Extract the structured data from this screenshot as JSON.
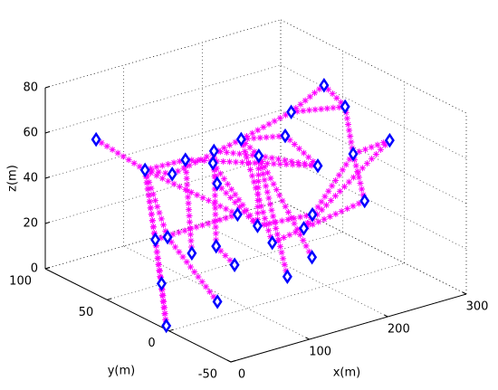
{
  "chart_data": {
    "type": "network3d",
    "x": [
      49,
      94,
      146,
      125,
      144,
      160,
      185,
      209,
      233,
      248,
      267,
      259,
      267,
      252,
      295,
      249,
      238,
      171,
      198,
      165,
      168,
      152,
      120,
      89,
      77,
      63,
      123,
      52,
      79,
      6,
      167,
      208
    ],
    "y": [
      90,
      79,
      90,
      66,
      55,
      66,
      59,
      60,
      49,
      32,
      27,
      44,
      -9,
      11,
      29,
      42,
      42,
      25,
      10,
      9,
      35,
      41,
      38,
      38,
      50,
      51,
      25,
      39,
      11,
      6,
      67,
      38
    ],
    "z": [
      55,
      40,
      30,
      45,
      50,
      40,
      50,
      40,
      60,
      75,
      65,
      35,
      60,
      50,
      20,
      15,
      10,
      15,
      10,
      5,
      20,
      25,
      15,
      15,
      20,
      20,
      10,
      5,
      2,
      0,
      30,
      55
    ],
    "edges": [
      [
        0,
        1
      ],
      [
        1,
        2
      ],
      [
        1,
        3
      ],
      [
        1,
        25
      ],
      [
        1,
        24
      ],
      [
        1,
        27
      ],
      [
        25,
        29
      ],
      [
        27,
        29
      ],
      [
        24,
        28
      ],
      [
        1,
        21
      ],
      [
        2,
        6
      ],
      [
        3,
        11
      ],
      [
        4,
        7
      ],
      [
        5,
        20
      ],
      [
        6,
        7
      ],
      [
        6,
        8
      ],
      [
        6,
        17
      ],
      [
        8,
        9
      ],
      [
        8,
        10
      ],
      [
        9,
        10
      ],
      [
        10,
        13
      ],
      [
        12,
        13
      ],
      [
        12,
        16
      ],
      [
        13,
        16
      ],
      [
        13,
        14
      ],
      [
        31,
        11
      ],
      [
        7,
        11
      ],
      [
        6,
        31
      ],
      [
        7,
        18
      ],
      [
        7,
        19
      ],
      [
        7,
        20
      ],
      [
        30,
        20
      ],
      [
        5,
        30
      ],
      [
        21,
        25
      ],
      [
        4,
        22
      ],
      [
        20,
        15
      ],
      [
        17,
        14
      ],
      [
        3,
        23
      ],
      [
        22,
        26
      ]
    ],
    "node_color": "#0000ff",
    "edge_color": "#ff00ff",
    "xlabel": "x(m)",
    "ylabel": "y(m)",
    "zlabel": "z(m)",
    "xlim": [
      0,
      300
    ],
    "ylim": [
      -50,
      100
    ],
    "zlim": [
      0,
      80
    ],
    "xticks": [
      0,
      100,
      200,
      300
    ],
    "yticks": [
      -50,
      0,
      50,
      100
    ],
    "zticks": [
      0,
      20,
      40,
      60,
      80
    ],
    "grid": true
  }
}
